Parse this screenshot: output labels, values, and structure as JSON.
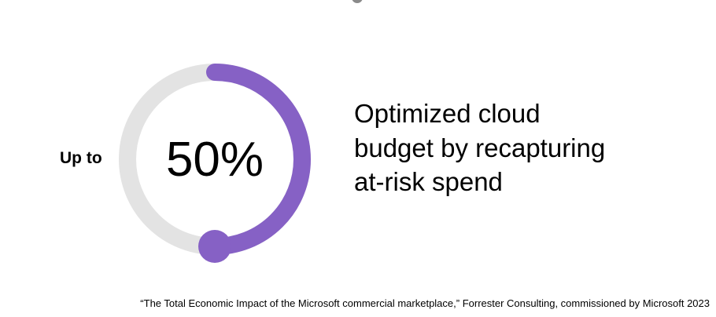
{
  "chart_data": {
    "type": "pie",
    "style": "donut-gauge",
    "prefix_label": "Up to",
    "value_label": "50%",
    "value": 50,
    "max": 100,
    "description": "Optimized cloud budget by recapturing at-risk spend",
    "colors": {
      "filled": "#8661c5",
      "track": "#e3e3e3"
    }
  },
  "footnote": "“The Total Economic Impact of the Microsoft commercial marketplace,” Forrester Consulting, commissioned by Microsoft 2023"
}
